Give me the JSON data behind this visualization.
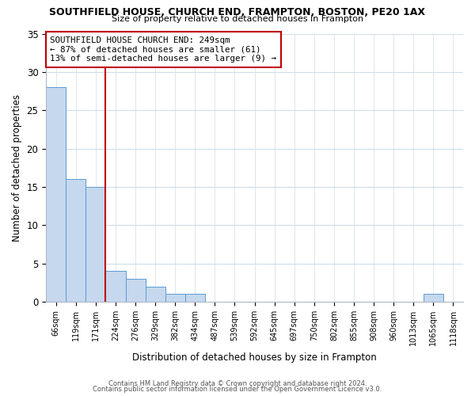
{
  "title": "SOUTHFIELD HOUSE, CHURCH END, FRAMPTON, BOSTON, PE20 1AX",
  "subtitle": "Size of property relative to detached houses in Frampton",
  "xlabel": "Distribution of detached houses by size in Frampton",
  "ylabel": "Number of detached properties",
  "bar_labels": [
    "66sqm",
    "119sqm",
    "171sqm",
    "224sqm",
    "276sqm",
    "329sqm",
    "382sqm",
    "434sqm",
    "487sqm",
    "539sqm",
    "592sqm",
    "645sqm",
    "697sqm",
    "750sqm",
    "802sqm",
    "855sqm",
    "908sqm",
    "960sqm",
    "1013sqm",
    "1065sqm",
    "1118sqm"
  ],
  "bar_values": [
    28,
    16,
    15,
    4,
    3,
    2,
    1,
    1,
    0,
    0,
    0,
    0,
    0,
    0,
    0,
    0,
    0,
    0,
    0,
    1,
    0
  ],
  "bar_color": "#c5d8ed",
  "bar_edge_color": "#5b9bd5",
  "reference_line_x": 2.5,
  "reference_line_color": "#c00000",
  "annotation_text": "SOUTHFIELD HOUSE CHURCH END: 249sqm\n← 87% of detached houses are smaller (61)\n13% of semi-detached houses are larger (9) →",
  "annotation_box_color": "#ffffff",
  "annotation_box_edge": "#c00000",
  "ylim": [
    0,
    35
  ],
  "yticks": [
    0,
    5,
    10,
    15,
    20,
    25,
    30,
    35
  ],
  "footer_line1": "Contains HM Land Registry data © Crown copyright and database right 2024.",
  "footer_line2": "Contains public sector information licensed under the Open Government Licence v3.0.",
  "bg_color": "#ffffff",
  "grid_color": "#d0dce8"
}
